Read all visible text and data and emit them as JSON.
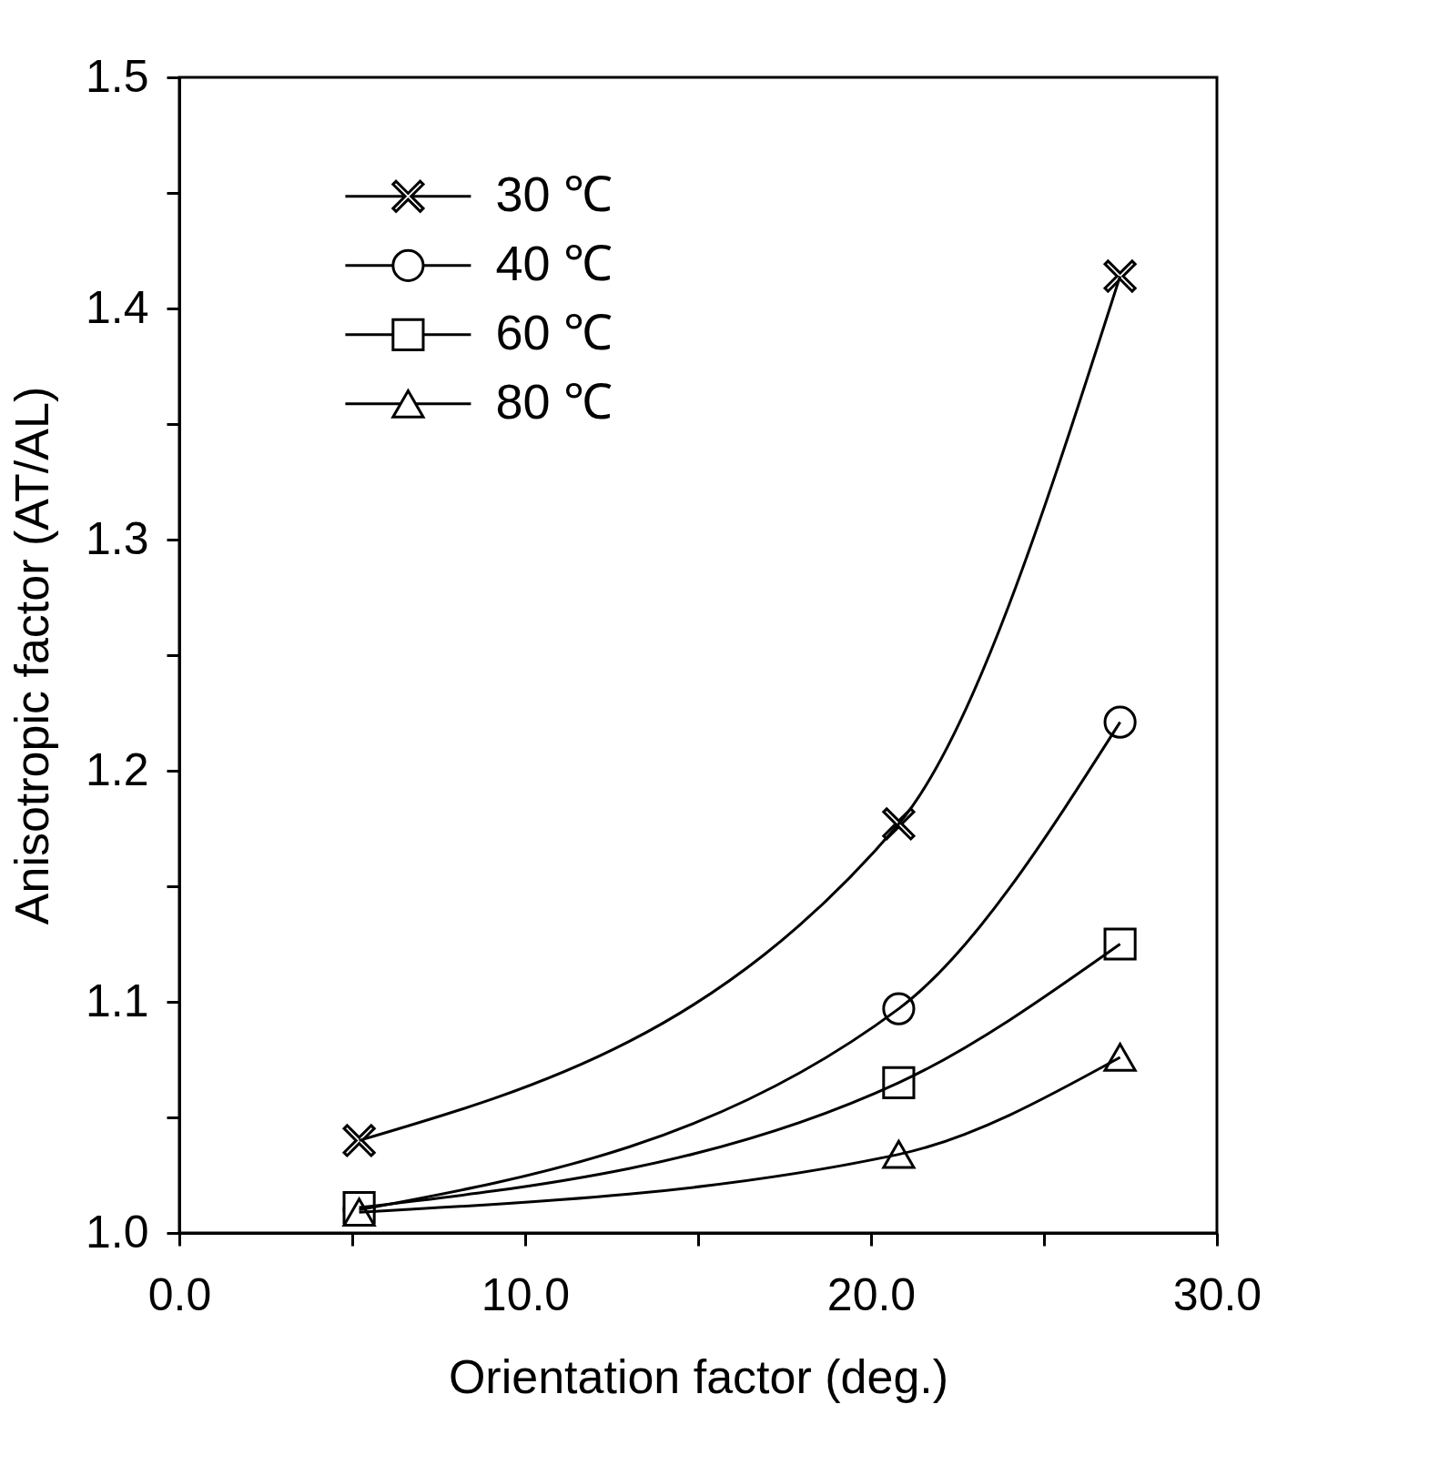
{
  "chart_data": {
    "type": "line",
    "xlabel": "Orientation factor  (deg.)",
    "ylabel": "Anisotropic factor (AT/AL)",
    "xlim": [
      0,
      30
    ],
    "ylim": [
      1.0,
      1.5
    ],
    "xticks": [
      {
        "value": 0,
        "label": "0.0"
      },
      {
        "value": 5,
        "label": null
      },
      {
        "value": 10,
        "label": "10.0"
      },
      {
        "value": 15,
        "label": null
      },
      {
        "value": 20,
        "label": "20.0"
      },
      {
        "value": 25,
        "label": null
      },
      {
        "value": 30,
        "label": "30.0"
      }
    ],
    "yticks": [
      {
        "value": 1.0,
        "label": "1.0"
      },
      {
        "value": 1.05,
        "label": null
      },
      {
        "value": 1.1,
        "label": "1.1"
      },
      {
        "value": 1.15,
        "label": null
      },
      {
        "value": 1.2,
        "label": "1.2"
      },
      {
        "value": 1.25,
        "label": null
      },
      {
        "value": 1.3,
        "label": "1.3"
      },
      {
        "value": 1.35,
        "label": null
      },
      {
        "value": 1.4,
        "label": "1.4"
      },
      {
        "value": 1.45,
        "label": null
      },
      {
        "value": 1.5,
        "label": "1.5"
      }
    ],
    "x": [
      5.2,
      20.8,
      27.2
    ],
    "grid": false,
    "legend": "top left",
    "line_style": "solid",
    "series": [
      {
        "name": "30 ℃",
        "color": "#000000",
        "marker": "cross",
        "values": [
          1.04,
          1.177,
          1.414
        ]
      },
      {
        "name": "40 ℃",
        "color": "#000000",
        "marker": "circle",
        "values": [
          1.01,
          1.097,
          1.221
        ]
      },
      {
        "name": "60 ℃",
        "color": "#000000",
        "marker": "square",
        "values": [
          1.011,
          1.065,
          1.125
        ]
      },
      {
        "name": "80 ℃",
        "color": "#000000",
        "marker": "triangle",
        "values": [
          1.009,
          1.034,
          1.076
        ]
      }
    ]
  }
}
